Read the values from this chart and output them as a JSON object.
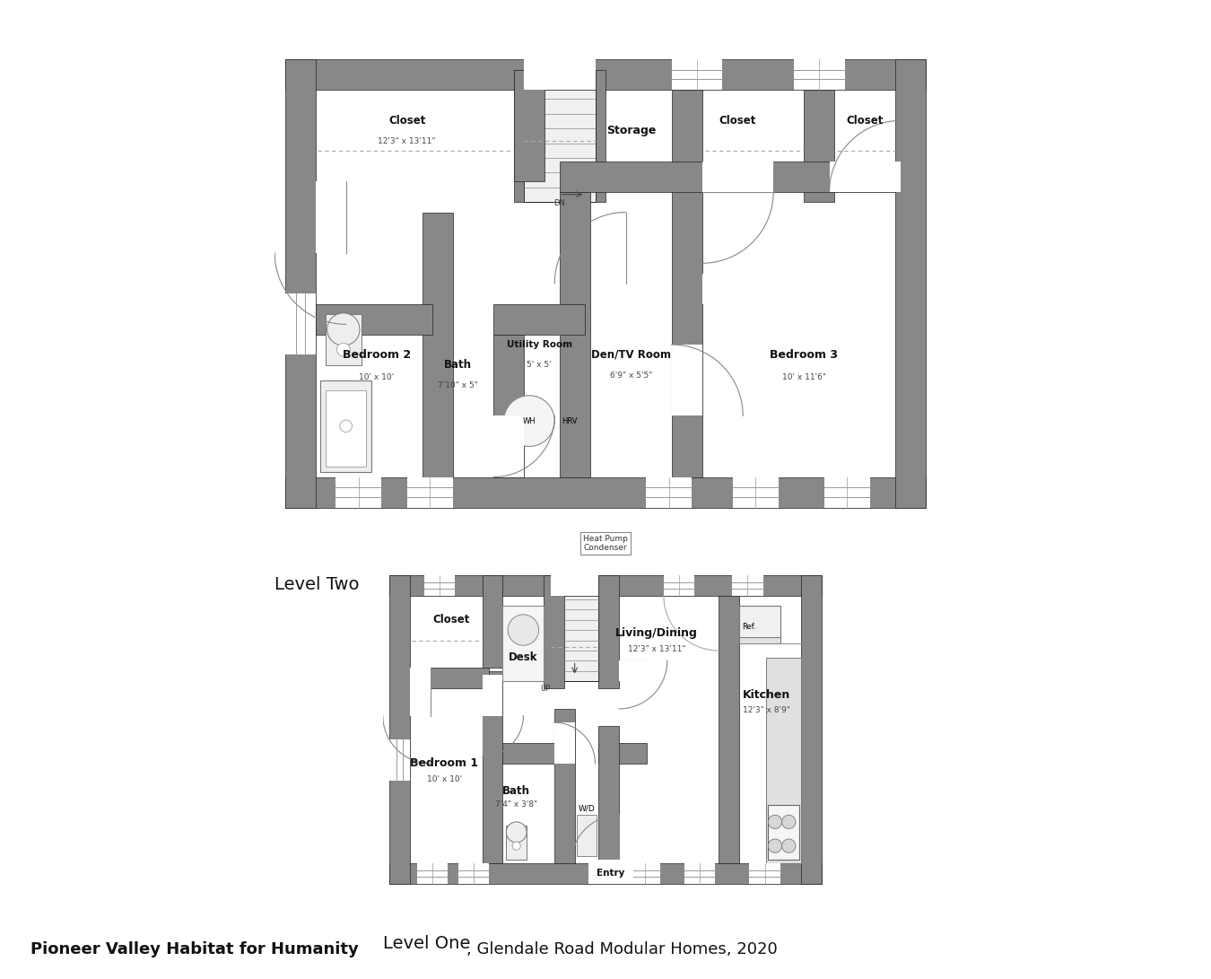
{
  "title_bold": "Pioneer Valley Habitat for Humanity",
  "title_regular": ", Glendale Road Modular Homes, 2020",
  "level_two_label": "Level Two",
  "level_one_label": "Level One",
  "bg_color": "#ffffff",
  "wall_gray": "#888888",
  "dark": "#222222",
  "white": "#ffffff",
  "fixture_gray": "#eeeeee",
  "mid_gray": "#aaaaaa"
}
